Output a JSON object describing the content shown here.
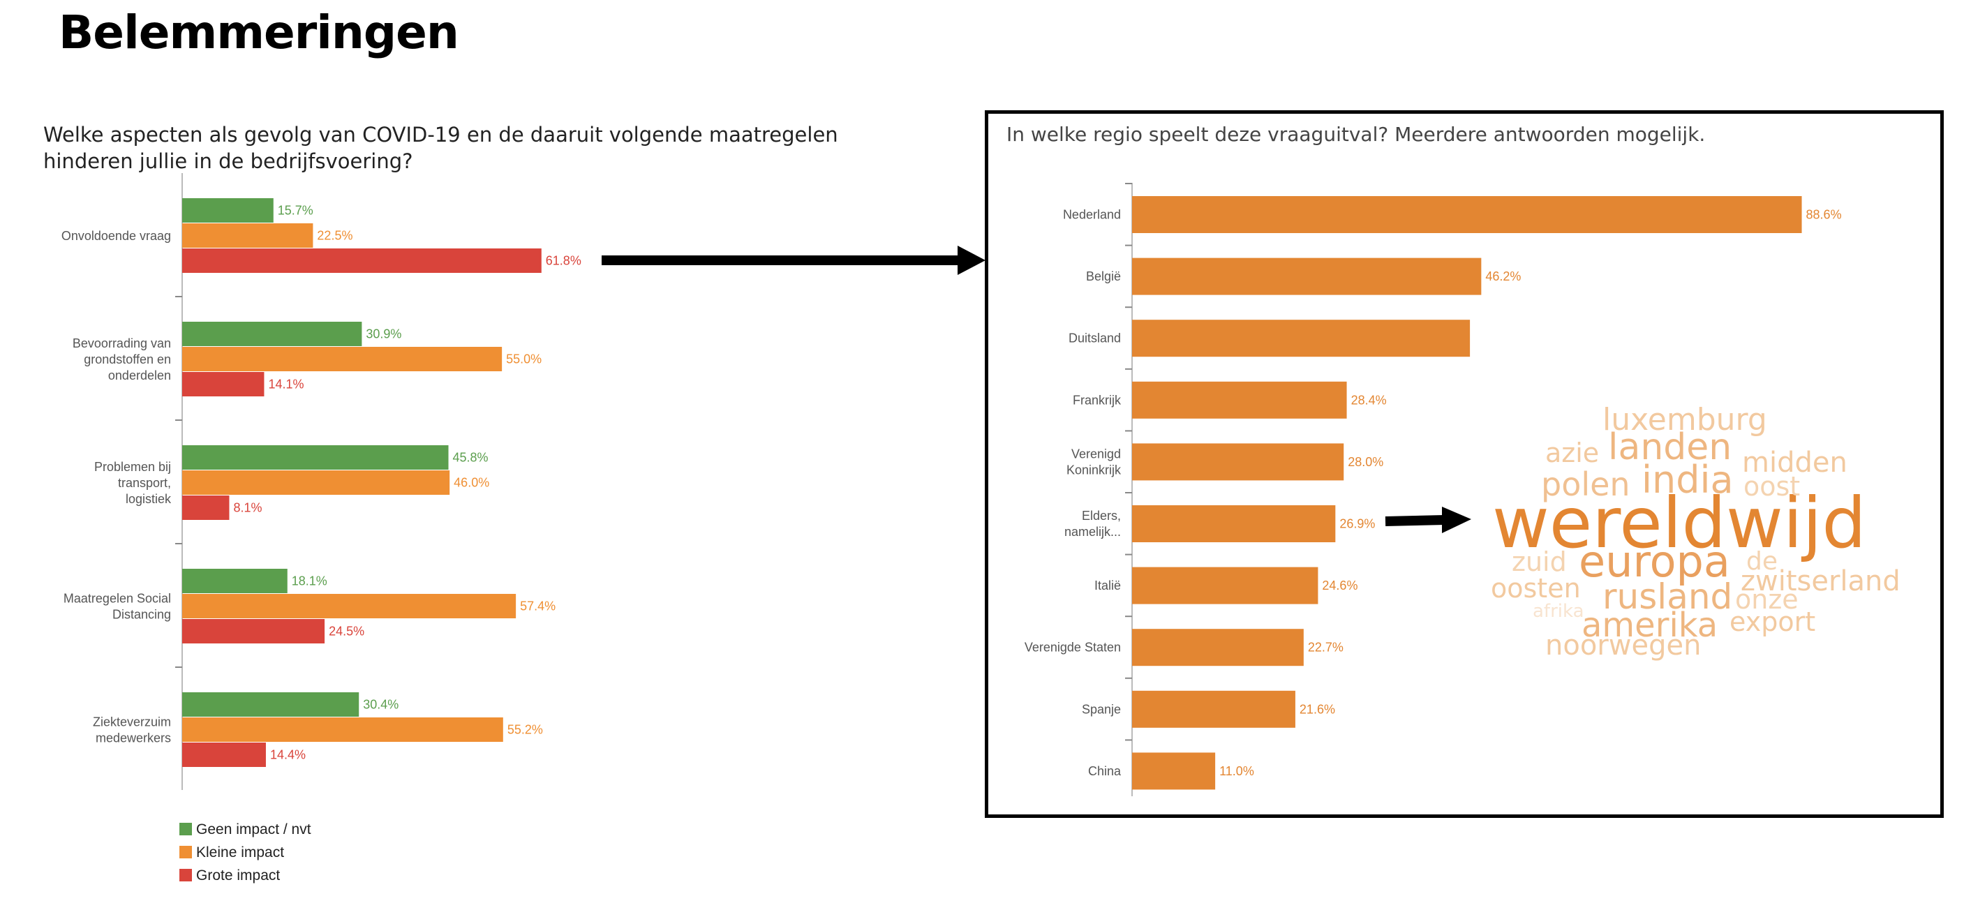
{
  "page": {
    "title": "Belemmeringen"
  },
  "chart_data": [
    {
      "type": "bar",
      "orientation": "horizontal",
      "title": "Welke aspecten als gevolg van COVID-19 en de daaruit volgende maatregelen hinderen jullie in de bedrijfsvoering?",
      "categories": [
        [
          "Onvoldoende vraag"
        ],
        [
          "Bevoorrading van",
          "grondstoffen en",
          "onderdelen"
        ],
        [
          "Problemen bij",
          "transport,",
          "logistiek"
        ],
        [
          "Maatregelen Social",
          "Distancing"
        ],
        [
          "Ziekteverzuim",
          "medewerkers"
        ]
      ],
      "series": [
        {
          "name": "Geen impact / nvt",
          "color": "#5b9e4d",
          "values": [
            15.7,
            30.9,
            45.8,
            18.1,
            30.4
          ]
        },
        {
          "name": "Kleine impact",
          "color": "#ef8f33",
          "values": [
            22.5,
            55.0,
            46.0,
            57.4,
            55.2
          ]
        },
        {
          "name": "Grote impact",
          "color": "#d9443b",
          "values": [
            61.8,
            14.1,
            8.1,
            24.5,
            14.4
          ]
        }
      ],
      "value_suffix": "%",
      "legend": "bottom-left",
      "xlim": [
        0,
        100
      ]
    },
    {
      "type": "bar",
      "orientation": "horizontal",
      "title": "In welke regio speelt deze vraaguitval? Meerdere antwoorden mogelijk.",
      "categories": [
        [
          "Nederland"
        ],
        [
          "België"
        ],
        [
          "Duitsland"
        ],
        [
          "Frankrijk"
        ],
        [
          "Verenigd",
          "Koninkrijk"
        ],
        [
          "Elders,",
          "namelijk..."
        ],
        [
          "Italië"
        ],
        [
          "Verenigde Staten"
        ],
        [
          "Spanje"
        ],
        [
          "China"
        ]
      ],
      "series": [
        {
          "color": "#e38632",
          "values": [
            88.6,
            46.2,
            44.7,
            28.4,
            28.0,
            26.9,
            24.6,
            22.7,
            21.6,
            11.0
          ]
        }
      ],
      "value_labels_visible": [
        true,
        true,
        false,
        true,
        true,
        true,
        true,
        true,
        true,
        true
      ],
      "value_suffix": "%",
      "xlim": [
        0,
        100
      ]
    }
  ],
  "word_cloud": {
    "words": [
      {
        "text": "wereldwijd",
        "weight": 100,
        "color": "#e38632"
      },
      {
        "text": "europa",
        "weight": 62,
        "color": "#e9a05f"
      },
      {
        "text": "india",
        "weight": 54,
        "color": "#eeb680"
      },
      {
        "text": "landen",
        "weight": 52,
        "color": "#eeb680"
      },
      {
        "text": "rusland",
        "weight": 50,
        "color": "#eeb680"
      },
      {
        "text": "amerika",
        "weight": 48,
        "color": "#eeb680"
      },
      {
        "text": "polen",
        "weight": 46,
        "color": "#f0c091"
      },
      {
        "text": "luxemburg",
        "weight": 44,
        "color": "#f2c99f"
      },
      {
        "text": "zwitserland",
        "weight": 40,
        "color": "#f2c99f"
      },
      {
        "text": "midden",
        "weight": 40,
        "color": "#f2c99f"
      },
      {
        "text": "noorwegen",
        "weight": 40,
        "color": "#f2c99f"
      },
      {
        "text": "oosten",
        "weight": 38,
        "color": "#f2c99f"
      },
      {
        "text": "export",
        "weight": 38,
        "color": "#f2c99f"
      },
      {
        "text": "azie",
        "weight": 38,
        "color": "#f2c99f"
      },
      {
        "text": "onze",
        "weight": 38,
        "color": "#f4d3b0"
      },
      {
        "text": "oost",
        "weight": 38,
        "color": "#f4d3b0"
      },
      {
        "text": "zuid",
        "weight": 38,
        "color": "#f4d3b0"
      },
      {
        "text": "de",
        "weight": 36,
        "color": "#f4d3b0"
      },
      {
        "text": "afrika",
        "weight": 26,
        "color": "#f8e4d0"
      }
    ]
  }
}
